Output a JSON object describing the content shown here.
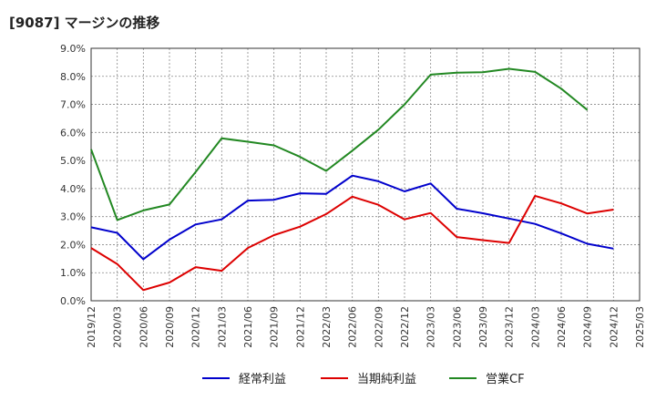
{
  "title": "[9087]  マージンの推移",
  "chart_data": {
    "type": "line",
    "title": "[9087]  マージンの推移",
    "xlabel": "",
    "ylabel": "",
    "ylim": [
      0,
      9
    ],
    "y_tick_labels": [
      "0.0%",
      "1.0%",
      "2.0%",
      "3.0%",
      "4.0%",
      "5.0%",
      "6.0%",
      "7.0%",
      "8.0%",
      "9.0%"
    ],
    "categories": [
      "2019/12",
      "2020/03",
      "2020/06",
      "2020/09",
      "2020/12",
      "2021/03",
      "2021/06",
      "2021/09",
      "2021/12",
      "2022/03",
      "2022/06",
      "2022/09",
      "2022/12",
      "2023/03",
      "2023/06",
      "2023/09",
      "2023/12",
      "2024/03",
      "2024/06",
      "2024/09",
      "2024/12",
      "2025/03"
    ],
    "grid": true,
    "legend_position": "bottom",
    "series": [
      {
        "name": "経常利益",
        "color": "#0000cc",
        "values": [
          2.62,
          2.42,
          1.48,
          2.18,
          2.72,
          2.9,
          3.57,
          3.6,
          3.83,
          3.81,
          4.46,
          4.26,
          3.9,
          4.18,
          3.28,
          3.12,
          2.93,
          2.74,
          2.4,
          2.03,
          1.86,
          null
        ]
      },
      {
        "name": "当期純利益",
        "color": "#dd0000",
        "values": [
          1.88,
          1.31,
          0.38,
          0.65,
          1.2,
          1.07,
          1.88,
          2.34,
          2.64,
          3.09,
          3.71,
          3.42,
          2.9,
          3.13,
          2.27,
          2.16,
          2.06,
          3.74,
          3.47,
          3.11,
          3.25,
          null
        ]
      },
      {
        "name": "営業CF",
        "color": "#228822",
        "values": [
          5.4,
          2.88,
          3.22,
          3.43,
          4.59,
          5.79,
          5.67,
          5.54,
          5.13,
          4.63,
          5.35,
          6.1,
          7.0,
          8.06,
          8.13,
          8.15,
          8.27,
          8.16,
          7.56,
          6.8,
          null,
          null
        ]
      }
    ]
  }
}
